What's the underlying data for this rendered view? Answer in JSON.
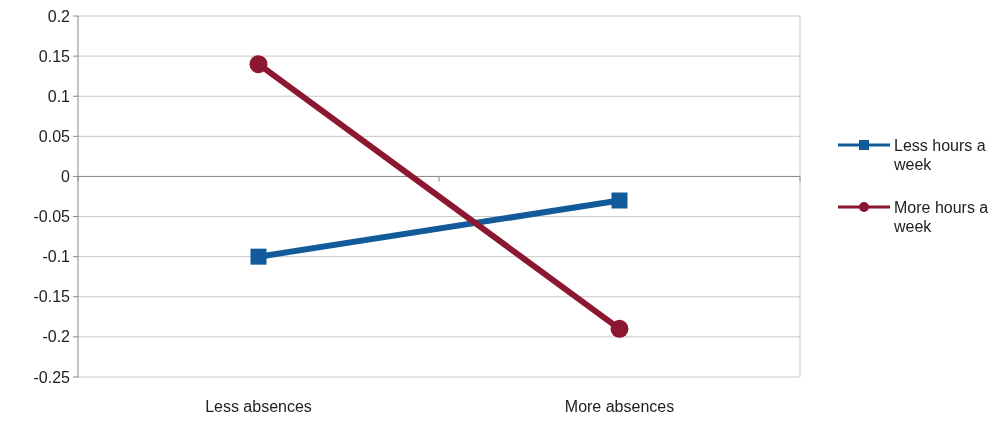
{
  "chart_data": {
    "type": "line",
    "categories": [
      "Less absences",
      "More absences"
    ],
    "series": [
      {
        "name": "Less hours a week",
        "color": "#125b9a",
        "values": [
          -0.1,
          -0.03
        ],
        "marker": "square"
      },
      {
        "name": "More hours a week",
        "color": "#8c1730",
        "values": [
          0.14,
          -0.19
        ],
        "marker": "circle"
      }
    ],
    "ylim": [
      -0.25,
      0.2
    ],
    "yticks": [
      -0.25,
      -0.2,
      -0.15,
      -0.1,
      -0.05,
      0,
      0.05,
      0.1,
      0.15,
      0.2
    ],
    "grid": "y",
    "legend": "right",
    "line_style": "solid"
  }
}
